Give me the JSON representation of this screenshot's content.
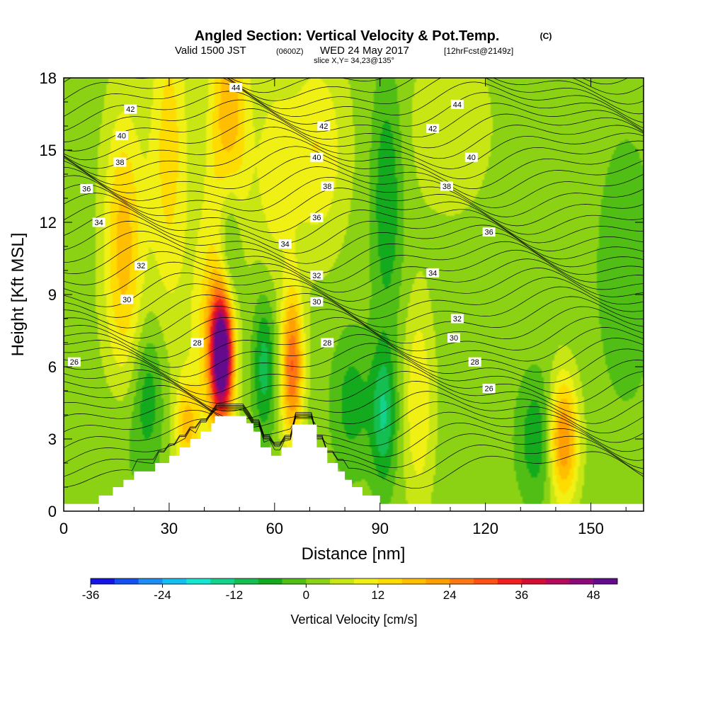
{
  "chart_data": {
    "type": "heatmap",
    "title": "Angled Section: Vertical Velocity & Pot.Temp.",
    "title_suffix": "(C)",
    "subtitle_a": "Valid 1500 JST",
    "subtitle_b": "(0600Z)",
    "subtitle_c": "WED 24 May 2017",
    "subtitle_d": "[12hrFcst@2149z]",
    "subtitle2": "slice X,Y= 34,23@135°",
    "xlabel": "Distance [nm]",
    "ylabel": "Height [Kft MSL]",
    "xlim": [
      0,
      165
    ],
    "ylim": [
      0,
      18
    ],
    "xticks": [
      0,
      30,
      60,
      90,
      120,
      150
    ],
    "yticks": [
      0,
      3,
      6,
      9,
      12,
      15,
      18
    ],
    "colorbar": {
      "label": "Vertical Velocity [cm/s]",
      "range": [
        -36,
        52
      ],
      "tick_values": [
        -36,
        -24,
        -12,
        0,
        12,
        24,
        36,
        48
      ],
      "colors": [
        "#1414e6",
        "#1450f0",
        "#1e8cf5",
        "#14bef0",
        "#14e6d2",
        "#14d28c",
        "#14be50",
        "#14aa1e",
        "#50be14",
        "#8cd214",
        "#c8e614",
        "#f0f014",
        "#ffdc00",
        "#ffbe00",
        "#ffa000",
        "#ff7814",
        "#ff5014",
        "#f01e1e",
        "#d20f32",
        "#b40a5a",
        "#8c0a78",
        "#640a8c"
      ]
    },
    "terrain_profile": [
      [
        0,
        0.3
      ],
      [
        10,
        0.3
      ],
      [
        10,
        0.65
      ],
      [
        14,
        0.65
      ],
      [
        14,
        1.0
      ],
      [
        17,
        1.0
      ],
      [
        17,
        1.3
      ],
      [
        20,
        1.3
      ],
      [
        20,
        1.65
      ],
      [
        26,
        1.65
      ],
      [
        26,
        2.0
      ],
      [
        30,
        2.0
      ],
      [
        30,
        2.3
      ],
      [
        33,
        2.3
      ],
      [
        33,
        2.65
      ],
      [
        36,
        2.65
      ],
      [
        36,
        3.0
      ],
      [
        39,
        3.0
      ],
      [
        39,
        3.3
      ],
      [
        42,
        3.3
      ],
      [
        42,
        3.65
      ],
      [
        43,
        3.65
      ],
      [
        43,
        3.95
      ],
      [
        52,
        3.95
      ],
      [
        52,
        3.65
      ],
      [
        54,
        3.65
      ],
      [
        54,
        3.3
      ],
      [
        56,
        3.3
      ],
      [
        56,
        2.65
      ],
      [
        59,
        2.65
      ],
      [
        59,
        2.3
      ],
      [
        62,
        2.3
      ],
      [
        62,
        2.65
      ],
      [
        65,
        2.65
      ],
      [
        65,
        3.6
      ],
      [
        72,
        3.6
      ],
      [
        72,
        2.65
      ],
      [
        75,
        2.65
      ],
      [
        75,
        2.0
      ],
      [
        78,
        2.0
      ],
      [
        78,
        1.65
      ],
      [
        80,
        1.65
      ],
      [
        80,
        1.3
      ],
      [
        82,
        1.3
      ],
      [
        82,
        1.0
      ],
      [
        85,
        1.0
      ],
      [
        85,
        0.65
      ],
      [
        90,
        0.65
      ],
      [
        90,
        0.3
      ],
      [
        165,
        0.3
      ]
    ],
    "velocity_features": [
      {
        "x": 45,
        "z": 6.5,
        "sx": 2.2,
        "sz": 1.8,
        "value": 55
      },
      {
        "x": 42,
        "z": 7.5,
        "sx": 4,
        "sz": 3.5,
        "value": 12
      },
      {
        "x": 47,
        "z": 16,
        "sx": 4,
        "sz": 4,
        "value": 18
      },
      {
        "x": 17,
        "z": 11,
        "sx": 4,
        "sz": 4,
        "value": 16
      },
      {
        "x": 30,
        "z": 15,
        "sx": 4,
        "sz": 5,
        "value": 12
      },
      {
        "x": 65,
        "z": 6,
        "sx": 2.2,
        "sz": 2.2,
        "value": 26
      },
      {
        "x": 142,
        "z": 3,
        "sx": 3,
        "sz": 1.8,
        "value": 24
      },
      {
        "x": 101,
        "z": 4.5,
        "sx": 3,
        "sz": 3,
        "value": 10
      },
      {
        "x": 35,
        "z": 3.5,
        "sx": 2.5,
        "sz": 1.5,
        "value": 14
      },
      {
        "x": 72,
        "z": 15,
        "sx": 6,
        "sz": 3,
        "value": 10
      },
      {
        "x": 60,
        "z": 14,
        "sx": 4,
        "sz": 3,
        "value": 8
      },
      {
        "x": 110,
        "z": 16,
        "sx": 8,
        "sz": 2.5,
        "value": 6
      },
      {
        "x": 47,
        "z": 11,
        "sx": 2.5,
        "sz": 2.5,
        "value": -14
      },
      {
        "x": 57,
        "z": 6,
        "sx": 2.2,
        "sz": 2,
        "value": -12
      },
      {
        "x": 92,
        "z": 13,
        "sx": 3,
        "sz": 3.5,
        "value": -10
      },
      {
        "x": 91,
        "z": 4,
        "sx": 2.5,
        "sz": 2,
        "value": -14
      },
      {
        "x": 135,
        "z": 3,
        "sx": 4,
        "sz": 1.8,
        "value": -10
      },
      {
        "x": 24,
        "z": 5,
        "sx": 3,
        "sz": 2,
        "value": -8
      },
      {
        "x": 82,
        "z": 4.5,
        "sx": 4,
        "sz": 2,
        "value": -8
      },
      {
        "x": 160,
        "z": 10,
        "sx": 6,
        "sz": 4,
        "value": -5
      },
      {
        "x": 18,
        "z": 3,
        "sx": 6,
        "sz": 2,
        "value": -3
      }
    ],
    "contour_labels": [
      {
        "text": "44",
        "x": 49,
        "z": 17.6
      },
      {
        "text": "42",
        "x": 19,
        "z": 16.7
      },
      {
        "text": "40",
        "x": 16.5,
        "z": 15.6
      },
      {
        "text": "38",
        "x": 16,
        "z": 14.5
      },
      {
        "text": "36",
        "x": 6.5,
        "z": 13.4
      },
      {
        "text": "34",
        "x": 10,
        "z": 12.0
      },
      {
        "text": "32",
        "x": 22,
        "z": 10.2
      },
      {
        "text": "30",
        "x": 18,
        "z": 8.8
      },
      {
        "text": "28",
        "x": 38,
        "z": 7.0
      },
      {
        "text": "26",
        "x": 3,
        "z": 6.2
      },
      {
        "text": "42",
        "x": 74,
        "z": 16.0
      },
      {
        "text": "40",
        "x": 72,
        "z": 14.7
      },
      {
        "text": "38",
        "x": 75,
        "z": 13.5
      },
      {
        "text": "36",
        "x": 72,
        "z": 12.2
      },
      {
        "text": "34",
        "x": 63,
        "z": 11.1
      },
      {
        "text": "32",
        "x": 72,
        "z": 9.8
      },
      {
        "text": "30",
        "x": 72,
        "z": 8.7
      },
      {
        "text": "28",
        "x": 75,
        "z": 7.0
      },
      {
        "text": "44",
        "x": 112,
        "z": 16.9
      },
      {
        "text": "42",
        "x": 105,
        "z": 15.9
      },
      {
        "text": "40",
        "x": 116,
        "z": 14.7
      },
      {
        "text": "38",
        "x": 109,
        "z": 13.5
      },
      {
        "text": "36",
        "x": 121,
        "z": 11.6
      },
      {
        "text": "34",
        "x": 105,
        "z": 9.9
      },
      {
        "text": "32",
        "x": 112,
        "z": 8.0
      },
      {
        "text": "30",
        "x": 111,
        "z": 7.2
      },
      {
        "text": "28",
        "x": 117,
        "z": 6.2
      },
      {
        "text": "26",
        "x": 121,
        "z": 5.1
      }
    ]
  }
}
